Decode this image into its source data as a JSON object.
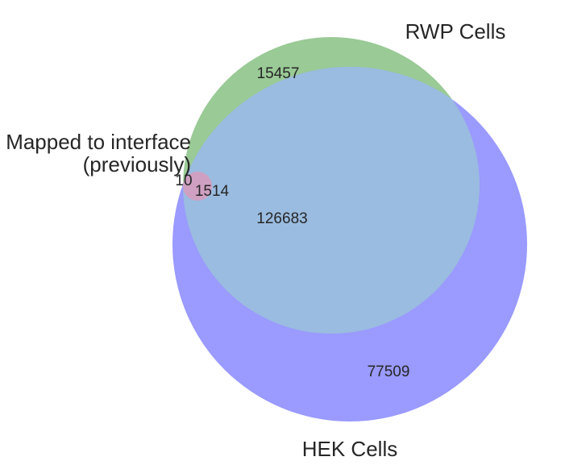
{
  "sets": {
    "rwp": {
      "label": "RWP Cells",
      "color": "#9aca96"
    },
    "hek": {
      "label": "HEK Cells",
      "color": "#9a9aff"
    },
    "mapped": {
      "label_line1": "Mapped to interface",
      "label_line2": "(previously)",
      "color": "#cfa0c2"
    },
    "overlap_color": "#9abce0"
  },
  "regions": {
    "rwp_only": "15457",
    "hek_only": "77509",
    "rwp_hek": "126683",
    "mapped_only": "10",
    "mapped_rwp_hek": "1514"
  }
}
